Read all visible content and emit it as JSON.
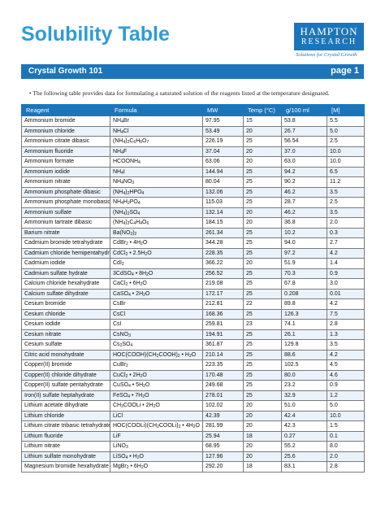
{
  "header": {
    "title": "Solubility Table",
    "logo_line1": "HAMPTON",
    "logo_line2": "RESEARCH",
    "logo_tagline": "Solutions for Crystal Growth",
    "band_left": "Crystal Growth 101",
    "band_right": "page 1",
    "intro": "•  The following table provides data for formulating a saturated solution of the reagents listed at the temperature designated."
  },
  "colors": {
    "brand_blue": "#1b75bb",
    "title_blue": "#2e9bd8",
    "row_tint": "#eaf3fb"
  },
  "table": {
    "columns": [
      "Reagent",
      "Formula",
      "MW",
      "Temp (°C)",
      "g/100 ml",
      "[M]"
    ],
    "rows": [
      [
        "Ammonium bromide",
        "NH₄Br",
        "97.95",
        "15",
        "53.8",
        "5.5"
      ],
      [
        "Ammonium chloride",
        "NH₄Cl",
        "53.49",
        "20",
        "26.7",
        "5.0"
      ],
      [
        "Ammonium citrate dibasic",
        "(NH₄)₂C₆H₆O₇",
        "226.19",
        "25",
        "56.54",
        "2.5"
      ],
      [
        "Ammonium fluoride",
        "NH₄F",
        "37.04",
        "20",
        "37.0",
        "10.0"
      ],
      [
        "Ammonium formate",
        "HCOONH₄",
        "63.06",
        "20",
        "63.0",
        "10.0"
      ],
      [
        "Ammonium iodide",
        "NH₄I",
        "144.94",
        "25",
        "94.2",
        "6.5"
      ],
      [
        "Ammonium nitrate",
        "NH₄NO₃",
        "80.04",
        "25",
        "90.2",
        "11.2"
      ],
      [
        "Ammonium phosphate dibasic",
        "(NH₄)₂HPO₄",
        "132.06",
        "25",
        "46.2",
        "3.5"
      ],
      [
        "Ammonium phosphate monobasic",
        "NH₄H₂PO₄",
        "115.03",
        "25",
        "28.7",
        "2.5"
      ],
      [
        "Ammonium sulfate",
        "(NH₄)₂SO₄",
        "132.14",
        "20",
        "46.2",
        "3.5"
      ],
      [
        "Ammonium tartrate dibasic",
        "(NH₄)₂C₄H₄O₆",
        "184.15",
        "20",
        "36.8",
        "2.0"
      ],
      [
        "Barium nitrate",
        "Ba(NO₃)₂",
        "261.34",
        "25",
        "10.2",
        "0.3"
      ],
      [
        "Cadmium bromide tetrahydrate",
        "CdBr₂ • 4H₂O",
        "344.28",
        "25",
        "94.0",
        "2.7"
      ],
      [
        "Cadmium chloride hemipentahydrate",
        "CdCl₂ • 2.5H₂O",
        "228.35",
        "25",
        "97.2",
        "4.2"
      ],
      [
        "Cadmium iodide",
        "CdI₂",
        "366.22",
        "20",
        "51.9",
        "1.4"
      ],
      [
        "Cadmium sulfate hydrate",
        "3CdSO₄ • 8H₂O",
        "256.52",
        "25",
        "70.3",
        "0.9"
      ],
      [
        "Calcium chloride hexahydrate",
        "CaCl₂ • 6H₂O",
        "219.08",
        "25",
        "67.8",
        "3.0"
      ],
      [
        "Calcium sulfate dihydrate",
        "CaSO₄ • 2H₂O",
        "172.17",
        "25",
        "0.208",
        "0.01"
      ],
      [
        "Cesium bromide",
        "CsBr",
        "212.81",
        "22",
        "89.8",
        "4.2"
      ],
      [
        "Cesium chloride",
        "CsCl",
        "168.36",
        "25",
        "126.3",
        "7.5"
      ],
      [
        "Cesium iodide",
        "CsI",
        "259.81",
        "23",
        "74.1",
        "2.8"
      ],
      [
        "Cesium nitrate",
        "CsNO₃",
        "194.91",
        "25",
        "26.1",
        "1.3"
      ],
      [
        "Cesium sulfate",
        "Cs₂SO₄",
        "361.87",
        "25",
        "129.8",
        "3.5"
      ],
      [
        "Citric acid monohydrate",
        "HOC(COOH)(CH₂COOH)₂ • H₂O",
        "210.14",
        "25",
        "88.6",
        "4.2"
      ],
      [
        "Copper(II) bromide",
        "CuBr₂",
        "223.35",
        "25",
        "102.5",
        "4.5"
      ],
      [
        "Copper(II) chloride dihydrate",
        "CuCl₂ • 2H₂O",
        "170.48",
        "25",
        "80.0",
        "4.6"
      ],
      [
        "Copper(II) sulfate pentahydrate",
        "CuSO₄ • 5H₂O",
        "249.68",
        "25",
        "23.2",
        "0.9"
      ],
      [
        "Iron(II) sulfate heptahydrate",
        "FeSO₄ • 7H₂O",
        "278.01",
        "25",
        "32.9",
        "1.2"
      ],
      [
        "Lithium acetate dihydrate",
        "CH₃COOLi • 2H₂O",
        "102.02",
        "20",
        "51.0",
        "5.0"
      ],
      [
        "Lithium chloride",
        "LiCl",
        "42.39",
        "20",
        "42.4",
        "10.0"
      ],
      [
        "Lithium citrate tribasic tetrahydrate",
        "HOC(COOLi)(CH₂COOLi)₂ • 4H₂O",
        "281.99",
        "20",
        "42.3",
        "1.5"
      ],
      [
        "Lithium fluoride",
        "LiF",
        "25.94",
        "18",
        "0.27",
        "0.1"
      ],
      [
        "Lithium nitrate",
        "LiNO₃",
        "68.95",
        "20",
        "55.2",
        "8.0"
      ],
      [
        "Lithium sulfate monohydrate",
        "LiSO₄ • H₂O",
        "127.96",
        "20",
        "25.6",
        "2.0"
      ],
      [
        "Magnesium bromide hexahydrate",
        "MgBr₂ • 6H₂O",
        "292.20",
        "18",
        "83.1",
        "2.8"
      ]
    ]
  }
}
